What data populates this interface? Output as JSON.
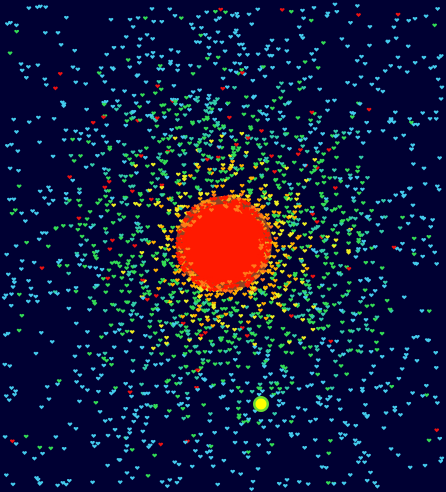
{
  "scene": {
    "description_free": true,
    "colors": {
      "background": "#000033",
      "core": "#ff1a00",
      "halo_inner": "#ff7a1a",
      "orange": "#ffb000",
      "yellow": "#eeee22",
      "green": "#33dd55",
      "teal": "#33ccaa",
      "cyan": "#44ccee",
      "companion": "#ffff00",
      "companion_halo": "#66dd33",
      "sparse_red": "#ee1111"
    },
    "particle_shape": "heart-icon",
    "core_label": "",
    "companion_label": ""
  }
}
